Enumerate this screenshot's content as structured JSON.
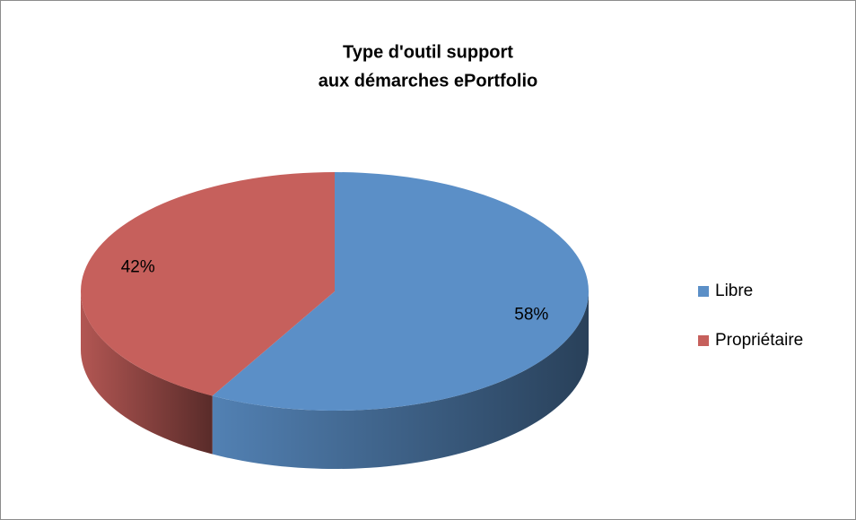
{
  "chart_data": {
    "type": "pie",
    "title": [
      "Type d'outil support",
      "aux démarches ePortfolio"
    ],
    "categories": [
      "Libre",
      "Propriétaire"
    ],
    "values": [
      58,
      42
    ],
    "value_labels": [
      "58%",
      "42%"
    ],
    "colors": [
      "#5b8fc7",
      "#c6605c"
    ],
    "legend": "right"
  }
}
